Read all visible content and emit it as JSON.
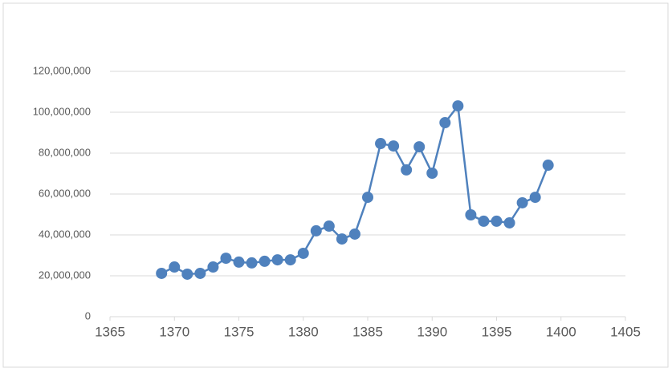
{
  "chart_data": {
    "type": "line",
    "x": [
      1369,
      1370,
      1371,
      1372,
      1373,
      1374,
      1375,
      1376,
      1377,
      1378,
      1379,
      1380,
      1381,
      1382,
      1383,
      1384,
      1385,
      1386,
      1387,
      1388,
      1389,
      1390,
      1391,
      1392,
      1393,
      1394,
      1395,
      1396,
      1397,
      1398,
      1399
    ],
    "series": [
      {
        "color": "#4f81bd",
        "values": [
          21200000,
          24300000,
          20800000,
          21200000,
          24300000,
          28600000,
          26700000,
          26300000,
          27100000,
          27800000,
          27800000,
          31000000,
          42000000,
          44300000,
          38000000,
          40400000,
          58400000,
          84700000,
          83500000,
          71800000,
          83100000,
          70200000,
          94900000,
          103100000,
          49800000,
          46700000,
          46700000,
          45900000,
          55700000,
          58400000,
          74100000
        ]
      }
    ],
    "xlim": [
      1365,
      1405
    ],
    "xticks": [
      1365,
      1370,
      1375,
      1380,
      1385,
      1390,
      1395,
      1400,
      1405
    ],
    "ylim": [
      0,
      120000000
    ],
    "yticks": [
      0,
      {
        "value": 20000000,
        "label": "20,000,000"
      },
      {
        "value": 40000000,
        "label": "40,000,000"
      },
      {
        "value": 60000000,
        "label": "60,000,000"
      },
      {
        "value": 80000000,
        "label": "80,000,000"
      },
      {
        "value": 100000000,
        "label": "100,000,000"
      },
      {
        "value": 120000000,
        "label": "120,000,000"
      }
    ],
    "grid": true
  }
}
